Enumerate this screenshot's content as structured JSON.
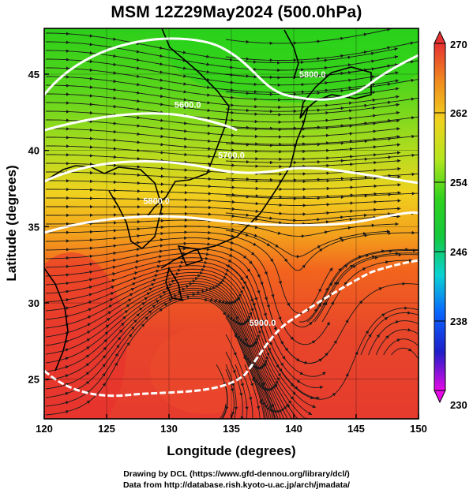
{
  "title": "MSM 12Z29May2024 (500.0hPa)",
  "map": {
    "xlabel": "Longitude (degrees)",
    "ylabel": "Latitude  (degrees)",
    "lon_range": [
      120,
      150
    ],
    "lat_range": [
      22.4,
      48
    ],
    "lon_ticks": [
      "120",
      "125",
      "130",
      "135",
      "140",
      "145",
      "150"
    ],
    "lat_ticks": [
      "25",
      "30",
      "35",
      "40",
      "45"
    ],
    "grid": true,
    "field": "temperature (shaded) + wind streamlines + geopotential height contours",
    "contour_labels": [
      {
        "text": "5600.0",
        "lon": 131.5,
        "lat": 42.8
      },
      {
        "text": "5800.0",
        "lon": 129.0,
        "lat": 36.5
      },
      {
        "text": "5800.0",
        "lon": 141.5,
        "lat": 44.8
      },
      {
        "text": "5700.0",
        "lon": 135.0,
        "lat": 39.5
      },
      {
        "text": "5900.0",
        "lon": 137.5,
        "lat": 28.5
      }
    ],
    "colors": {
      "high": "#e63b2e",
      "mid": "#f5d21c",
      "low": "#1ed21e"
    }
  },
  "colorbar": {
    "min": "230",
    "max": "270",
    "ticks": [
      "262",
      "254",
      "246",
      "238"
    ],
    "stops": [
      "#e60ae6",
      "#1e1ec8",
      "#0a64ff",
      "#0ad2d2",
      "#14c83c",
      "#32d21e",
      "#b4e61e",
      "#f0d21e",
      "#f08c1e",
      "#e63232"
    ]
  },
  "credits": {
    "line1": "Drawing by DCL (https://www.gfd-dennou.org/library/dcl/)",
    "line2": "Data from http://database.rish.kyoto-u.ac.jp/arch/jmadata/"
  }
}
